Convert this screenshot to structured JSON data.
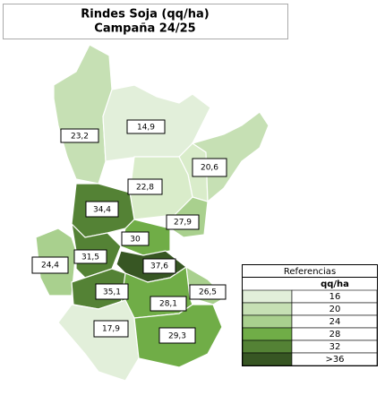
{
  "header": {
    "title": "Rindes Soja (qq/ha)",
    "subtitle": "Campaña 24/25"
  },
  "regions": [
    {
      "label": "23,2",
      "color": "#c6e0b4"
    },
    {
      "label": "14,9",
      "color": "#e2efda"
    },
    {
      "label": "20,6",
      "color": "#c6e0b4"
    },
    {
      "label": "22,8",
      "color": "#d9ecca"
    },
    {
      "label": "34,4",
      "color": "#548235"
    },
    {
      "label": "27,9",
      "color": "#a9d08e"
    },
    {
      "label": "30",
      "color": "#70ad47"
    },
    {
      "label": "24,4",
      "color": "#a9d08e"
    },
    {
      "label": "31,5",
      "color": "#548235"
    },
    {
      "label": "37,6",
      "color": "#375623"
    },
    {
      "label": "35,1",
      "color": "#548235"
    },
    {
      "label": "26,5",
      "color": "#a9d08e"
    },
    {
      "label": "28,1",
      "color": "#70ad47"
    },
    {
      "label": "17,9",
      "color": "#e2efda"
    },
    {
      "label": "29,3",
      "color": "#70ad47"
    }
  ],
  "legend": {
    "title": "Referencias",
    "unit": "qq/ha",
    "rows": [
      {
        "label": "16",
        "color": "#e2efda"
      },
      {
        "label": "20",
        "color": "#c6e0b4"
      },
      {
        "label": "24",
        "color": "#a9d08e"
      },
      {
        "label": "28",
        "color": "#70ad47"
      },
      {
        "label": "32",
        "color": "#548235"
      },
      {
        "label": ">36",
        "color": "#375623"
      }
    ]
  }
}
